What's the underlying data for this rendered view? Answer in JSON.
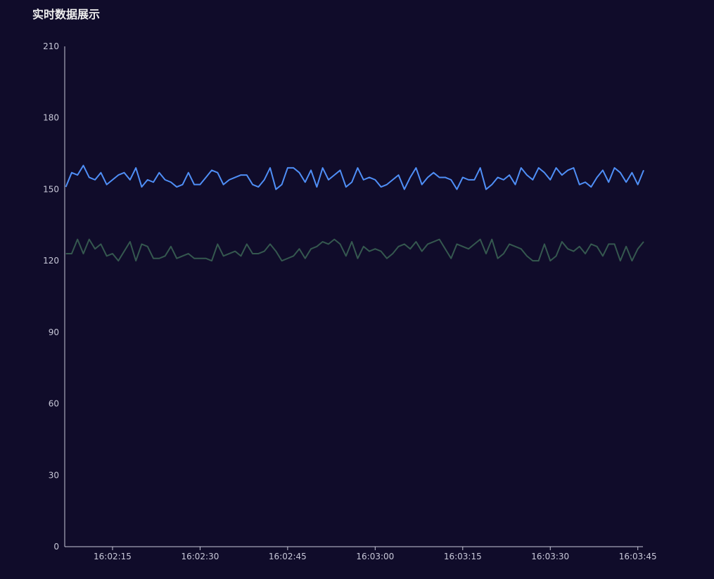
{
  "chart_data": {
    "type": "line",
    "title": "实时数据展示",
    "x": [
      "16:02:07",
      "16:02:08",
      "16:02:09",
      "16:02:10",
      "16:02:11",
      "16:02:12",
      "16:02:13",
      "16:02:14",
      "16:02:15",
      "16:02:16",
      "16:02:17",
      "16:02:18",
      "16:02:19",
      "16:02:20",
      "16:02:21",
      "16:02:22",
      "16:02:23",
      "16:02:24",
      "16:02:25",
      "16:02:26",
      "16:02:27",
      "16:02:28",
      "16:02:29",
      "16:02:30",
      "16:02:31",
      "16:02:32",
      "16:02:33",
      "16:02:34",
      "16:02:35",
      "16:02:36",
      "16:02:37",
      "16:02:38",
      "16:02:39",
      "16:02:40",
      "16:02:41",
      "16:02:42",
      "16:02:43",
      "16:02:44",
      "16:02:45",
      "16:02:46",
      "16:02:47",
      "16:02:48",
      "16:02:49",
      "16:02:50",
      "16:02:51",
      "16:02:52",
      "16:02:53",
      "16:02:54",
      "16:02:55",
      "16:02:56",
      "16:02:57",
      "16:02:58",
      "16:02:59",
      "16:03:00",
      "16:03:01",
      "16:03:02",
      "16:03:03",
      "16:03:04",
      "16:03:05",
      "16:03:06",
      "16:03:07",
      "16:03:08",
      "16:03:09",
      "16:03:10",
      "16:03:11",
      "16:03:12",
      "16:03:13",
      "16:03:14",
      "16:03:15",
      "16:03:16",
      "16:03:17",
      "16:03:18",
      "16:03:19",
      "16:03:20",
      "16:03:21",
      "16:03:22",
      "16:03:23",
      "16:03:24",
      "16:03:25",
      "16:03:26",
      "16:03:27",
      "16:03:28",
      "16:03:29",
      "16:03:30",
      "16:03:31",
      "16:03:32",
      "16:03:33",
      "16:03:34",
      "16:03:35",
      "16:03:36",
      "16:03:37",
      "16:03:38",
      "16:03:39",
      "16:03:40",
      "16:03:41",
      "16:03:42",
      "16:03:43",
      "16:03:44",
      "16:03:45",
      "16:03:46"
    ],
    "series": [
      {
        "color": "#4f8ff7",
        "values": [
          151,
          157,
          156,
          160,
          155,
          154,
          157,
          152,
          154,
          156,
          157,
          154,
          159,
          151,
          154,
          153,
          157,
          154,
          153,
          151,
          152,
          157,
          152,
          152,
          155,
          158,
          157,
          152,
          154,
          155,
          156,
          156,
          152,
          151,
          154,
          159,
          150,
          152,
          159,
          159,
          157,
          153,
          158,
          151,
          159,
          154,
          156,
          158,
          151,
          153,
          159,
          154,
          155,
          154,
          151,
          152,
          154,
          156,
          150,
          155,
          159,
          152,
          155,
          157,
          155,
          155,
          154,
          150,
          155,
          154,
          154,
          159,
          150,
          152,
          155,
          154,
          156,
          152,
          159,
          156,
          154,
          159,
          157,
          154,
          159,
          156,
          158,
          159,
          152,
          153,
          151,
          155,
          158,
          153,
          159,
          157,
          153,
          157,
          152,
          158
        ]
      },
      {
        "color": "#35584f",
        "values": [
          123,
          123,
          129,
          123,
          129,
          125,
          127,
          122,
          123,
          120,
          124,
          128,
          120,
          127,
          126,
          121,
          121,
          122,
          126,
          121,
          122,
          123,
          121,
          121,
          121,
          120,
          127,
          122,
          123,
          124,
          122,
          127,
          123,
          123,
          124,
          127,
          124,
          120,
          121,
          122,
          125,
          121,
          125,
          126,
          128,
          127,
          129,
          127,
          122,
          128,
          121,
          126,
          124,
          125,
          124,
          121,
          123,
          126,
          127,
          125,
          128,
          124,
          127,
          128,
          129,
          125,
          121,
          127,
          126,
          125,
          127,
          129,
          123,
          129,
          121,
          123,
          127,
          126,
          125,
          122,
          120,
          120,
          127,
          120,
          122,
          128,
          125,
          124,
          126,
          123,
          127,
          126,
          122,
          127,
          127,
          120,
          126,
          120,
          125,
          128
        ]
      }
    ],
    "xlim": [
      "16:02:07",
      "16:03:46"
    ],
    "xticks": [
      "16:02:15",
      "16:02:30",
      "16:02:45",
      "16:03:00",
      "16:03:15",
      "16:03:30",
      "16:03:45"
    ],
    "ylim": [
      0,
      210
    ],
    "yticks": [
      0,
      30,
      60,
      90,
      120,
      150,
      180,
      210
    ],
    "grid": false
  }
}
